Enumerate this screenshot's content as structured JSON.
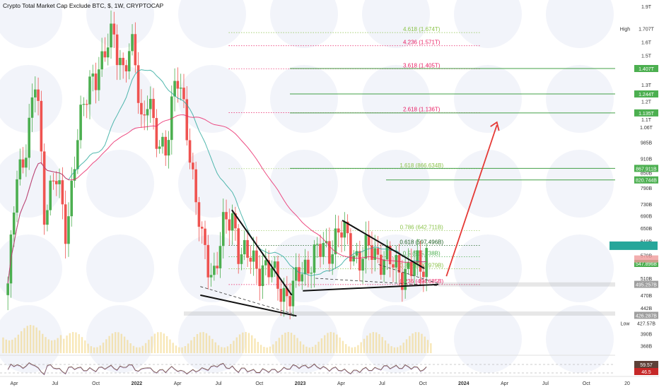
{
  "chart_data": {
    "type": "candlestick",
    "title": "Crypto Total Market Cap Exclude BTC, $, 1W, CRYPTOCAP",
    "y_scale": "log",
    "y_range_dollars": [
      355000000000,
      1960000000000
    ],
    "y_ticks": [
      "1.9T",
      "1.7T",
      "1.6T",
      "1.5T",
      "1.4T",
      "1.3T",
      "1.2T",
      "1.1T",
      "1.06T",
      "985B",
      "910B",
      "850B",
      "790B",
      "730B",
      "690B",
      "650B",
      "610B",
      "570B",
      "510B",
      "470B",
      "442B",
      "390B",
      "368B"
    ],
    "x_ticks": [
      "Apr",
      "Jul",
      "Oct",
      "2022",
      "Apr",
      "Jul",
      "Oct",
      "2023",
      "Apr",
      "Jul",
      "Oct",
      "2024",
      "Apr",
      "Jul",
      "Oct",
      "20"
    ],
    "x_range_years": [
      2021.1,
      2025.0
    ],
    "price_path": [
      [
        2021.15,
        470
      ],
      [
        2021.2,
        820
      ],
      [
        2021.28,
        1020
      ],
      [
        2021.33,
        1350
      ],
      [
        2021.38,
        720
      ],
      [
        2021.45,
        840
      ],
      [
        2021.52,
        640
      ],
      [
        2021.58,
        960
      ],
      [
        2021.68,
        1380
      ],
      [
        2021.75,
        1420
      ],
      [
        2021.82,
        1720
      ],
      [
        2021.88,
        1380
      ],
      [
        2021.95,
        1560
      ],
      [
        2022.0,
        1080
      ],
      [
        2022.04,
        1250
      ],
      [
        2022.08,
        980
      ],
      [
        2022.15,
        985
      ],
      [
        2022.22,
        1330
      ],
      [
        2022.28,
        1120
      ],
      [
        2022.33,
        790
      ],
      [
        2022.38,
        600
      ],
      [
        2022.45,
        520
      ],
      [
        2022.52,
        650
      ],
      [
        2022.58,
        690
      ],
      [
        2022.62,
        580
      ],
      [
        2022.7,
        550
      ],
      [
        2022.78,
        540
      ],
      [
        2022.85,
        505
      ],
      [
        2022.9,
        480
      ],
      [
        2022.95,
        470
      ],
      [
        2023.0,
        520
      ],
      [
        2023.06,
        560
      ],
      [
        2023.12,
        575
      ],
      [
        2023.18,
        590
      ],
      [
        2023.25,
        640
      ],
      [
        2023.32,
        600
      ],
      [
        2023.38,
        560
      ],
      [
        2023.45,
        585
      ],
      [
        2023.52,
        570
      ],
      [
        2023.58,
        540
      ],
      [
        2023.64,
        535
      ],
      [
        2023.72,
        530
      ],
      [
        2023.78,
        545
      ],
      [
        2023.82,
        610
      ]
    ],
    "fib_levels": [
      {
        "label": "4.618 (1.674T)",
        "value_billions": 1674,
        "color": "#8bc34a"
      },
      {
        "label": "4.236 (1.571T)",
        "value_billions": 1571,
        "color": "#e91e63"
      },
      {
        "label": "3.618 (1.405T)",
        "value_billions": 1405,
        "color": "#e91e63"
      },
      {
        "label": "2.618 (1.136T)",
        "value_billions": 1136,
        "color": "#e91e63"
      },
      {
        "label": "1.618 (866.634B)",
        "value_billions": 866.634,
        "color": "#8bc34a"
      },
      {
        "label": "0.786 (642.711B)",
        "value_billions": 642.711,
        "color": "#8bc34a"
      },
      {
        "label": "0.618 (597.496B)",
        "value_billions": 597.496,
        "color": "#1b5e20"
      },
      {
        "label": "0.5 (565.738B)",
        "value_billions": 565.738,
        "color": "#4caf50"
      },
      {
        "label": "0.382 (533.979B)",
        "value_billions": 533.979,
        "color": "#8bc34a"
      },
      {
        "label": "0.236 (494.685B)",
        "value_billions": 494.685,
        "color": "#e91e63"
      }
    ],
    "price_badges": [
      {
        "label": "1.407T",
        "value_billions": 1407,
        "color": "#4caf50"
      },
      {
        "label": "1.244T",
        "value_billions": 1244,
        "color": "#4caf50"
      },
      {
        "label": "1.135T",
        "value_billions": 1135,
        "color": "#4caf50"
      },
      {
        "label": "867.911B",
        "value_billions": 867.911,
        "color": "#4caf50"
      },
      {
        "label": "820.744B",
        "value_billions": 820.744,
        "color": "#4caf50"
      },
      {
        "label": "547.947B",
        "value_billions": 547.947,
        "color": "#4caf50"
      },
      {
        "label": "547.896B",
        "value_billions": 547.896,
        "color": "#4caf50"
      },
      {
        "label": "495.257B",
        "value_billions": 495.257,
        "color": "#9e9e9e"
      },
      {
        "label": "426.287B",
        "value_billions": 426.287,
        "color": "#9e9e9e"
      }
    ],
    "high_label": "High",
    "high_value": "1.707T",
    "low_label": "Low",
    "low_value": "427.57B",
    "rsi_values": [
      "59.57",
      "46.5"
    ],
    "colors": {
      "up": "#26a69a",
      "up_bright": "#4caf50",
      "down": "#ef5350",
      "ma_fast": "#26a69a",
      "ma_slow": "#e91e63",
      "arrow": "#e53935"
    },
    "grid": false,
    "legend": "none"
  }
}
